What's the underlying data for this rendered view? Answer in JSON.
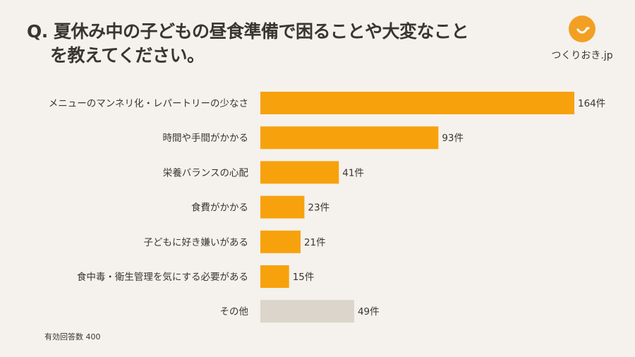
{
  "title": {
    "line1": "Q. 夏休み中の子どもの昼食準備で困ることや大変なこと",
    "line2": "を教えてください。"
  },
  "logo": {
    "text": "つくりおき.jp"
  },
  "note": "有効回答数 400",
  "colors": {
    "bar": "#f7a20c",
    "other": "#dcd5cb",
    "background": "#f5f1ec"
  },
  "chart_data": {
    "type": "bar",
    "orientation": "horizontal",
    "categories": [
      "メニューのマンネリ化・レパートリーの少なさ",
      "時間や手間がかかる",
      "栄養バランスの心配",
      "食費がかかる",
      "子どもに好き嫌いがある",
      "食中毒・衛生管理を気にする必要がある",
      "その他"
    ],
    "values": [
      164,
      93,
      41,
      23,
      21,
      15,
      49
    ],
    "value_labels": [
      "164件",
      "93件",
      "41件",
      "23件",
      "21件",
      "15件",
      "49件"
    ],
    "unit": "件",
    "grid": false,
    "legend": "none"
  }
}
